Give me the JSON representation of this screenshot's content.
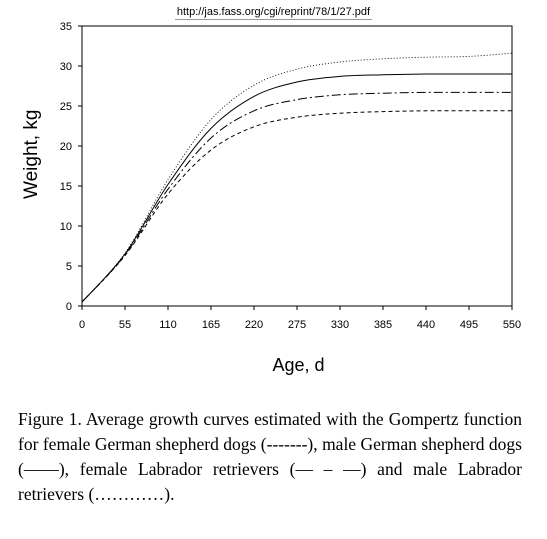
{
  "header": {
    "url": "http://jas.fass.org/cgi/reprint/78/1/27.pdf"
  },
  "chart_data": {
    "type": "line",
    "xlabel": "Age, d",
    "ylabel": "Weight, kg",
    "xlim": [
      0,
      550
    ],
    "ylim": [
      0,
      35
    ],
    "xticks": [
      "0",
      "55",
      "110",
      "165",
      "220",
      "275",
      "330",
      "385",
      "440",
      "495",
      "550"
    ],
    "yticks": [
      "0",
      "5",
      "10",
      "15",
      "20",
      "25",
      "30",
      "35"
    ],
    "x": [
      0,
      55,
      110,
      165,
      220,
      275,
      330,
      385,
      440,
      495,
      550
    ],
    "series": [
      {
        "name": "female German shepherd dogs",
        "style": "dashed",
        "values": [
          0.5,
          6.3,
          14.0,
          19.5,
          22.4,
          23.6,
          24.1,
          24.3,
          24.4,
          24.4,
          24.4
        ]
      },
      {
        "name": "male German shepherd dogs",
        "style": "solid",
        "values": [
          0.5,
          6.5,
          15.2,
          22.2,
          26.2,
          28.0,
          28.7,
          28.9,
          29.0,
          29.0,
          29.0
        ]
      },
      {
        "name": "female Labrador retrievers",
        "style": "dash-dot",
        "values": [
          0.5,
          6.4,
          14.6,
          21.0,
          24.4,
          25.8,
          26.4,
          26.6,
          26.7,
          26.7,
          26.7
        ]
      },
      {
        "name": "male Labrador retrievers",
        "style": "dotted",
        "values": [
          0.5,
          6.6,
          15.8,
          23.3,
          27.6,
          29.6,
          30.5,
          30.9,
          31.1,
          31.2,
          31.6
        ]
      }
    ],
    "grid": false,
    "legend": "none"
  },
  "caption": {
    "text": "Figure 1. Average growth curves estimated with the Gompertz function for female German shepherd dogs (-------), male German shepherd dogs (——), female Labrador retrievers (— – —) and male Labrador retrievers (…………)."
  }
}
